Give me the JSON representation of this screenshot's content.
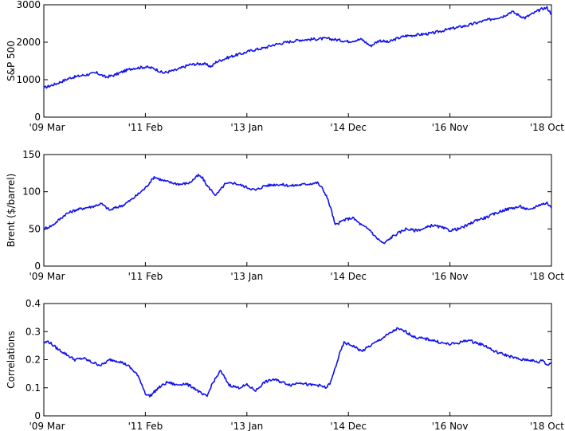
{
  "chart_data": [
    {
      "type": "line",
      "ylabel": "S&P 500",
      "ylim": [
        0,
        3000
      ],
      "yticks": [
        0,
        1000,
        2000,
        3000
      ],
      "xticks": [
        "'09 Mar",
        "'11 Feb",
        "'13 Jan",
        "'14 Dec",
        "'16 Nov",
        "'18 Oct"
      ],
      "xlim": [
        0,
        115
      ],
      "series": [
        {
          "color": "#1010ee",
          "x": [
            0,
            3,
            6,
            9,
            12,
            14,
            16,
            18,
            20,
            23,
            25,
            27,
            30,
            33,
            36,
            38,
            39,
            41,
            43,
            45,
            47,
            50,
            52,
            55,
            58,
            61,
            64,
            66,
            69,
            72,
            74,
            76,
            78,
            80,
            82,
            84,
            88,
            90,
            93,
            96,
            100,
            104,
            106,
            108,
            109,
            110,
            113,
            114,
            115
          ],
          "values": [
            780,
            900,
            1050,
            1120,
            1180,
            1070,
            1120,
            1220,
            1300,
            1340,
            1300,
            1180,
            1260,
            1400,
            1430,
            1350,
            1470,
            1560,
            1640,
            1700,
            1780,
            1850,
            1930,
            2000,
            2060,
            2080,
            2100,
            2070,
            2020,
            2080,
            1900,
            2050,
            2000,
            2100,
            2170,
            2190,
            2240,
            2300,
            2380,
            2450,
            2580,
            2690,
            2820,
            2700,
            2650,
            2720,
            2900,
            2920,
            2750
          ]
        }
      ]
    },
    {
      "type": "line",
      "ylabel": "Brent ($/barrel)",
      "ylim": [
        0,
        150
      ],
      "yticks": [
        0,
        50,
        100,
        150
      ],
      "xticks": [
        "'09 Mar",
        "'11 Feb",
        "'13 Jan",
        "'14 Dec",
        "'16 Nov",
        "'18 Oct"
      ],
      "xlim": [
        0,
        115
      ],
      "series": [
        {
          "color": "#1010ee",
          "x": [
            0,
            2,
            5,
            7,
            9,
            11,
            13,
            15,
            16,
            18,
            20,
            22,
            23,
            25,
            27,
            29,
            31,
            33,
            35,
            36,
            37,
            39,
            41,
            43,
            45,
            48,
            50,
            53,
            56,
            59,
            62,
            63,
            64,
            65,
            66,
            68,
            70,
            72,
            74,
            75,
            77,
            79,
            82,
            84,
            86,
            88,
            90,
            92,
            94,
            96,
            98,
            100,
            102,
            104,
            106,
            108,
            110,
            112,
            114,
            115
          ],
          "values": [
            50,
            55,
            70,
            75,
            78,
            80,
            84,
            75,
            78,
            82,
            90,
            100,
            105,
            120,
            115,
            112,
            110,
            112,
            122,
            118,
            108,
            95,
            110,
            112,
            108,
            102,
            108,
            110,
            108,
            110,
            112,
            105,
            95,
            78,
            55,
            62,
            65,
            55,
            48,
            40,
            30,
            40,
            50,
            48,
            50,
            55,
            52,
            48,
            50,
            55,
            62,
            65,
            70,
            75,
            78,
            80,
            75,
            82,
            85,
            78
          ]
        }
      ]
    },
    {
      "type": "line",
      "ylabel": "Correlations",
      "ylim": [
        0,
        0.4
      ],
      "yticks": [
        0,
        0.1,
        0.2,
        0.3,
        0.4
      ],
      "xticks": [
        "'09 Mar",
        "'11 Feb",
        "'13 Jan",
        "'14 Dec",
        "'16 Nov",
        "'18 Oct"
      ],
      "xlim": [
        0,
        115
      ],
      "series": [
        {
          "color": "#1010ee",
          "x": [
            0,
            1,
            3,
            5,
            7,
            9,
            11,
            13,
            15,
            17,
            19,
            21,
            22,
            23,
            24,
            26,
            28,
            30,
            32,
            34,
            36,
            37,
            38,
            40,
            42,
            44,
            46,
            48,
            50,
            52,
            54,
            56,
            58,
            60,
            62,
            64,
            65,
            66,
            67,
            68,
            70,
            72,
            74,
            76,
            78,
            80,
            82,
            84,
            86,
            88,
            90,
            92,
            94,
            96,
            98,
            100,
            102,
            104,
            106,
            108,
            110,
            112,
            113,
            114,
            115
          ],
          "values": [
            0.26,
            0.265,
            0.24,
            0.22,
            0.2,
            0.205,
            0.19,
            0.18,
            0.2,
            0.195,
            0.18,
            0.15,
            0.12,
            0.08,
            0.07,
            0.1,
            0.12,
            0.11,
            0.115,
            0.1,
            0.075,
            0.07,
            0.11,
            0.16,
            0.11,
            0.1,
            0.11,
            0.09,
            0.12,
            0.13,
            0.12,
            0.11,
            0.12,
            0.11,
            0.11,
            0.1,
            0.12,
            0.17,
            0.22,
            0.26,
            0.25,
            0.23,
            0.25,
            0.27,
            0.29,
            0.31,
            0.3,
            0.28,
            0.275,
            0.27,
            0.26,
            0.255,
            0.26,
            0.27,
            0.26,
            0.25,
            0.23,
            0.22,
            0.21,
            0.2,
            0.2,
            0.19,
            0.2,
            0.18,
            0.19
          ]
        }
      ]
    }
  ]
}
